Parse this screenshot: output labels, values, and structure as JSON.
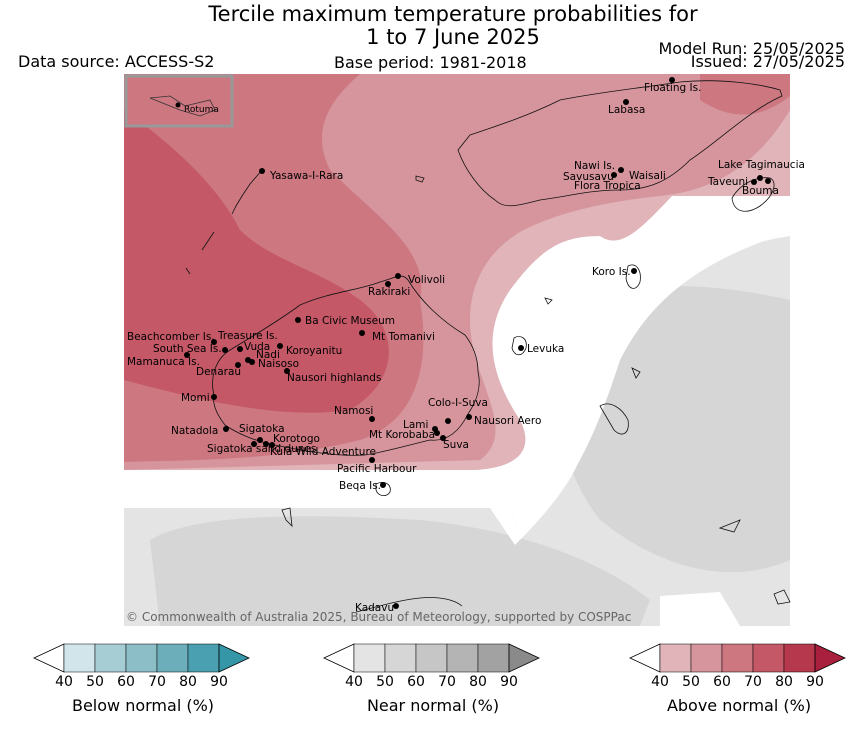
{
  "header": {
    "title_line1": "Tercile maximum temperature probabilities for",
    "title_line2": "1 to 7 June 2025",
    "data_source": "Data source: ACCESS-S2",
    "base_period": "Base period: 1981-2018",
    "model_run": "Model Run: 25/05/2025",
    "issued": "Issued: 27/05/2025"
  },
  "map": {
    "inset_label": "Rotuma",
    "copyright": "© Commonwealth of Australia 2025, Bureau of Meteorology, supported by COSPPac",
    "places": [
      "Floating Is.",
      "Labasa",
      "Nawi Is.",
      "Savusavu",
      "Waisali",
      "Flora Tropica",
      "Lake Tagimaucia",
      "Taveuni",
      "Bouma",
      "Yasawa-I-Rara",
      "Volivoli",
      "Rakiraki",
      "Koro Is.",
      "Ba Civic Museum",
      "Mt Tomanivi",
      "Beachcomber Is.",
      "Treasure Is.",
      "South Sea Is.",
      "Vuda",
      "Nadi",
      "Koroyanitu",
      "Mamanuca Is.",
      "Naisoso",
      "Denarau",
      "Nausori highlands",
      "Levuka",
      "Momi",
      "Namosi",
      "Colo-I-Suva",
      "Natadola",
      "Sigatoka",
      "Lami",
      "Nausori Aero",
      "Korotogo",
      "Mt Korobaba",
      "Sigatoka sand dunes",
      "Kula Wild Adventure",
      "Suva",
      "Pacific Harbour",
      "Beqa Is.",
      "Kadavu"
    ]
  },
  "legends": [
    {
      "label": "Below normal (%)",
      "ticks": [
        "40",
        "50",
        "60",
        "70",
        "80",
        "90"
      ],
      "colors": [
        "#ffffff",
        "#d1e5ea",
        "#a7cdd4",
        "#8cbec7",
        "#6cafbb",
        "#4aa0b0",
        "#3596a8"
      ]
    },
    {
      "label": "Near normal (%)",
      "ticks": [
        "40",
        "50",
        "60",
        "70",
        "80",
        "90"
      ],
      "colors": [
        "#ffffff",
        "#e4e4e4",
        "#d6d6d6",
        "#c6c6c6",
        "#b4b4b4",
        "#a2a2a2",
        "#8a8a8a"
      ]
    },
    {
      "label": "Above normal (%)",
      "ticks": [
        "40",
        "50",
        "60",
        "70",
        "80",
        "90"
      ],
      "colors": [
        "#ffffff",
        "#e0b4b9",
        "#d6959c",
        "#cd7781",
        "#c45867",
        "#b6384d",
        "#a8203d"
      ]
    }
  ]
}
